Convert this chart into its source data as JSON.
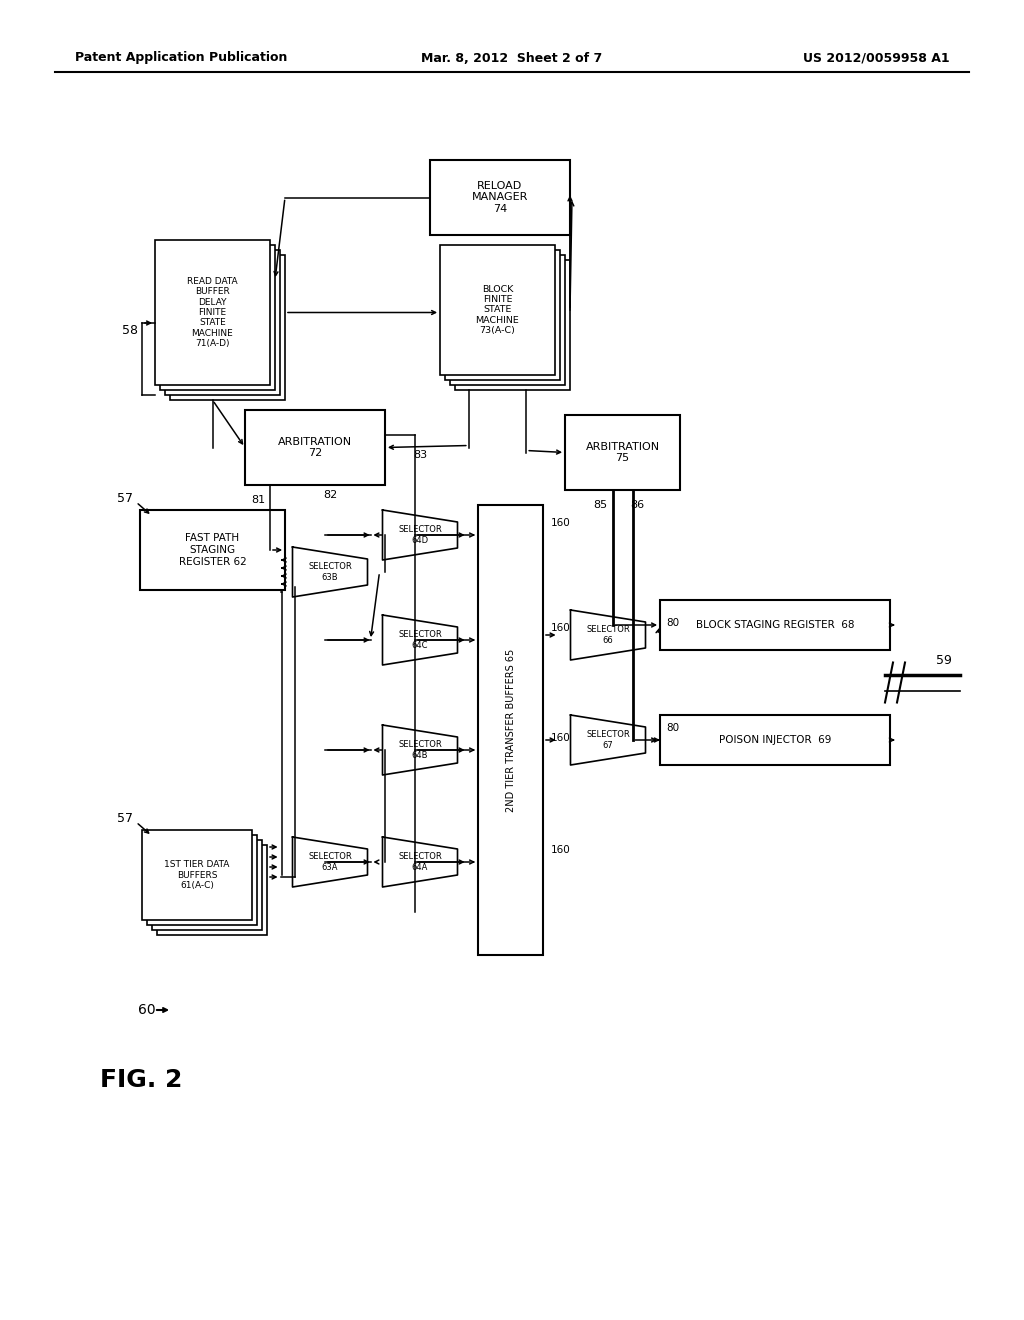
{
  "header_left": "Patent Application Publication",
  "header_mid": "Mar. 8, 2012  Sheet 2 of 7",
  "header_right": "US 2012/0059958 A1",
  "bg_color": "#ffffff"
}
